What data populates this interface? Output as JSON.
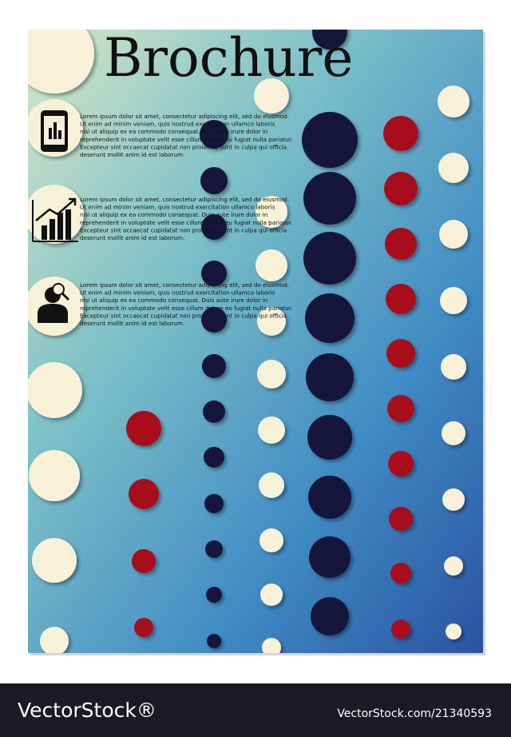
{
  "brochure": {
    "title": "Brochure",
    "blocks": [
      {
        "lines": [
          "Lorem ipsum dolor sit amet, consectetur adipiscing elit, sed do eiusmod.",
          "Ut enim ad minim veniam, quis nostrud exercitation ullamco laboris",
          "nisi ut aliquip ex ea commodo consequat. Duis aute irure dolor in",
          "reprehenderit in voluptate velit esse cillum dolore eu fugiat nulla pariatur.",
          "Excepteur sint occaecat cupidatat non proident, sunt in culpa qui officia",
          "deserunt mollit anim id est laborum."
        ]
      },
      {
        "lines": [
          "Lorem ipsum dolor sit amet, consectetur adipiscing elit, sed do eiusmod.",
          "Ut enim ad minim veniam, quis nostrud exercitation ullamco laboris",
          "nisi ut aliquip ex ea commodo consequat. Duis aute irure dolor in",
          "reprehenderit in voluptate velit esse cillum dolore eu fugiat nulla pariatur.",
          "Excepteur sint occaecat cupidatat non proident, sunt in culpa qui officia",
          "deserunt mollit anim id est laborum."
        ]
      },
      {
        "lines": [
          "Lorem ipsum dolor sit amet, consectetur adipiscing elit, sed do eiusmod.",
          "Ut enim ad minim veniam, quis nostrud exercitation ullamco laboris",
          "nisi ut aliquip ex ea commodo consequat. Duis aute irure dolor in",
          "reprehenderit in voluptate velit esse cillum dolore eu fugiat nulla pariatur.",
          "Excepteur sint occaecat cupidatat non proident, sunt in culpa qui officia",
          "deserunt mollit anim id est laborum."
        ]
      }
    ]
  },
  "footer": {
    "brand": "VectorStock®",
    "id": "VectorStock.com/21340593"
  }
}
